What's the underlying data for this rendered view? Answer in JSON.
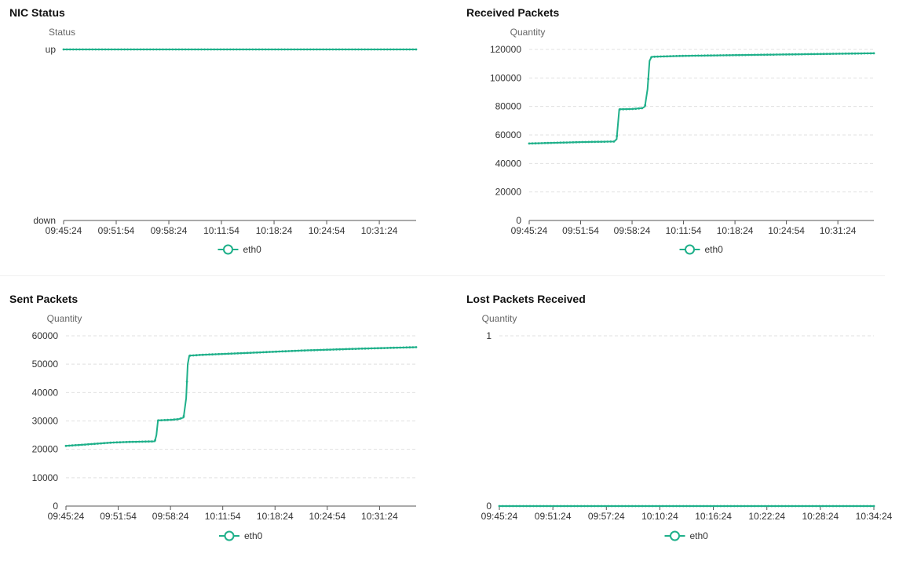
{
  "accent_color": "#1fb08a",
  "charts": [
    {
      "title": "NIC Status",
      "chart_data": {
        "type": "line",
        "ylabel": "Status",
        "y_categories": [
          "down",
          "up"
        ],
        "x_ticks": [
          "09:45:24",
          "09:51:54",
          "09:58:24",
          "10:11:54",
          "10:18:24",
          "10:24:54",
          "10:31:24"
        ],
        "xlim": [
          0,
          67
        ],
        "series": [
          {
            "name": "eth0",
            "x": [
              0,
              67
            ],
            "y": [
              1,
              1
            ]
          }
        ],
        "legend": [
          "eth0"
        ],
        "legend_position": "bottom-center",
        "grid": false
      }
    },
    {
      "title": "Received Packets",
      "chart_data": {
        "type": "line",
        "ylabel": "Quantity",
        "ylim": [
          0,
          120000
        ],
        "y_ticks": [
          "0",
          "20000",
          "40000",
          "60000",
          "80000",
          "100000",
          "120000"
        ],
        "x_ticks": [
          "09:45:24",
          "09:51:54",
          "09:58:24",
          "10:11:54",
          "10:18:24",
          "10:24:54",
          "10:31:24"
        ],
        "xlim": [
          0,
          67
        ],
        "series": [
          {
            "name": "eth0",
            "x": [
              0,
              5,
              10,
              15,
              16.5,
              17,
              17.5,
              20,
              22,
              22.5,
              23,
              23.4,
              23.8,
              25,
              30,
              40,
              50,
              60,
              67
            ],
            "y": [
              54000,
              54500,
              55000,
              55300,
              55400,
              57000,
              78000,
              78200,
              78800,
              80000,
              92000,
              112000,
              114800,
              115000,
              115500,
              116000,
              116500,
              117000,
              117300
            ]
          }
        ],
        "legend": [
          "eth0"
        ],
        "legend_position": "bottom-center",
        "grid": true
      }
    },
    {
      "title": "Sent Packets",
      "chart_data": {
        "type": "line",
        "ylabel": "Quantity",
        "ylim": [
          0,
          60000
        ],
        "y_ticks": [
          "0",
          "10000",
          "20000",
          "30000",
          "40000",
          "50000",
          "60000"
        ],
        "x_ticks": [
          "09:45:24",
          "09:51:54",
          "09:58:24",
          "10:11:54",
          "10:18:24",
          "10:24:54",
          "10:31:24"
        ],
        "xlim": [
          0,
          67
        ],
        "series": [
          {
            "name": "eth0",
            "x": [
              0,
              3,
              6,
              9,
              12,
              17,
              17.3,
              17.6,
              20,
              21.5,
              22.5,
              23,
              23.3,
              23.6,
              26,
              35,
              45,
              55,
              67
            ],
            "y": [
              21200,
              21600,
              22000,
              22400,
              22600,
              22800,
              25000,
              30200,
              30400,
              30600,
              31200,
              38000,
              50000,
              53000,
              53300,
              54000,
              54800,
              55400,
              56000
            ]
          }
        ],
        "legend": [
          "eth0"
        ],
        "legend_position": "bottom-center",
        "grid": true
      }
    },
    {
      "title": "Lost Packets Received",
      "chart_data": {
        "type": "line",
        "ylabel": "Quantity",
        "ylim": [
          0,
          1
        ],
        "y_ticks": [
          "0",
          "1"
        ],
        "x_ticks": [
          "09:45:24",
          "09:51:24",
          "09:57:24",
          "10:10:24",
          "10:16:24",
          "10:22:24",
          "10:28:24",
          "10:34:24"
        ],
        "xlim": [
          0,
          71
        ],
        "series": [
          {
            "name": "eth0",
            "x": [
              0,
              71
            ],
            "y": [
              0,
              0
            ]
          }
        ],
        "legend": [
          "eth0"
        ],
        "legend_position": "bottom-center",
        "grid": true
      }
    }
  ]
}
